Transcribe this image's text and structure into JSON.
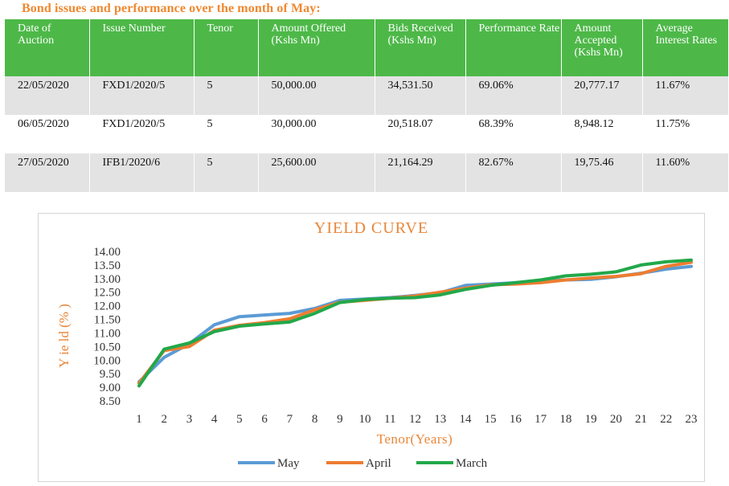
{
  "title": "Bond issues and performance over the month of May:",
  "table": {
    "headers": [
      "Date of Auction",
      "Issue Number",
      "Tenor",
      "Amount Offered (Kshs Mn)",
      "Bids Received (Kshs Mn)",
      "Performance Rate",
      "Amount Accepted (Kshs Mn)",
      "Average Interest Rates"
    ],
    "rows": [
      [
        "22/05/2020",
        "FXD1/2020/5",
        "5",
        "50,000.00",
        "34,531.50",
        "69.06%",
        "20,777.17",
        "11.67%"
      ],
      [
        "06/05/2020",
        "FXD1/2020/5",
        "5",
        "30,000.00",
        "20,518.07",
        "68.39%",
        "8,948.12",
        "11.75%"
      ],
      [
        "27/05/2020",
        "IFB1/2020/6",
        "5",
        "25,600.00",
        "21,164.29",
        "82.67%",
        "19,75.46",
        "11.60%"
      ]
    ]
  },
  "chart_data": {
    "type": "line",
    "title": "YIELD CURVE",
    "xlabel": "Tenor(Years)",
    "ylabel": "Y ie ld (% )",
    "x": [
      1,
      2,
      3,
      4,
      5,
      6,
      7,
      8,
      9,
      10,
      11,
      12,
      13,
      14,
      15,
      16,
      17,
      18,
      19,
      20,
      21,
      22,
      23
    ],
    "ylim": [
      8.5,
      14.0
    ],
    "yticks": [
      "8.50",
      "9.00",
      "9.50",
      "10.00",
      "10.50",
      "11.00",
      "11.50",
      "12.00",
      "12.50",
      "13.00",
      "13.50",
      "14.00"
    ],
    "legend_position": "bottom",
    "grid": false,
    "series": [
      {
        "name": "May",
        "color": "#5B9BD5",
        "values": [
          9.2,
          10.1,
          10.6,
          11.3,
          11.6,
          11.66,
          11.72,
          11.9,
          12.2,
          12.25,
          12.3,
          12.38,
          12.48,
          12.75,
          12.8,
          12.85,
          12.9,
          12.95,
          12.97,
          13.07,
          13.2,
          13.35,
          13.45
        ]
      },
      {
        "name": "April",
        "color": "#ED7D31",
        "values": [
          9.15,
          10.35,
          10.5,
          11.1,
          11.28,
          11.38,
          11.52,
          11.85,
          12.13,
          12.2,
          12.28,
          12.36,
          12.5,
          12.65,
          12.77,
          12.8,
          12.85,
          12.95,
          13.02,
          13.08,
          13.18,
          13.45,
          13.6
        ]
      },
      {
        "name": "March",
        "color": "#22A84A",
        "values": [
          9.05,
          10.4,
          10.63,
          11.05,
          11.25,
          11.33,
          11.4,
          11.72,
          12.12,
          12.23,
          12.28,
          12.3,
          12.4,
          12.6,
          12.75,
          12.85,
          12.95,
          13.1,
          13.16,
          13.25,
          13.5,
          13.62,
          13.68
        ]
      }
    ]
  }
}
